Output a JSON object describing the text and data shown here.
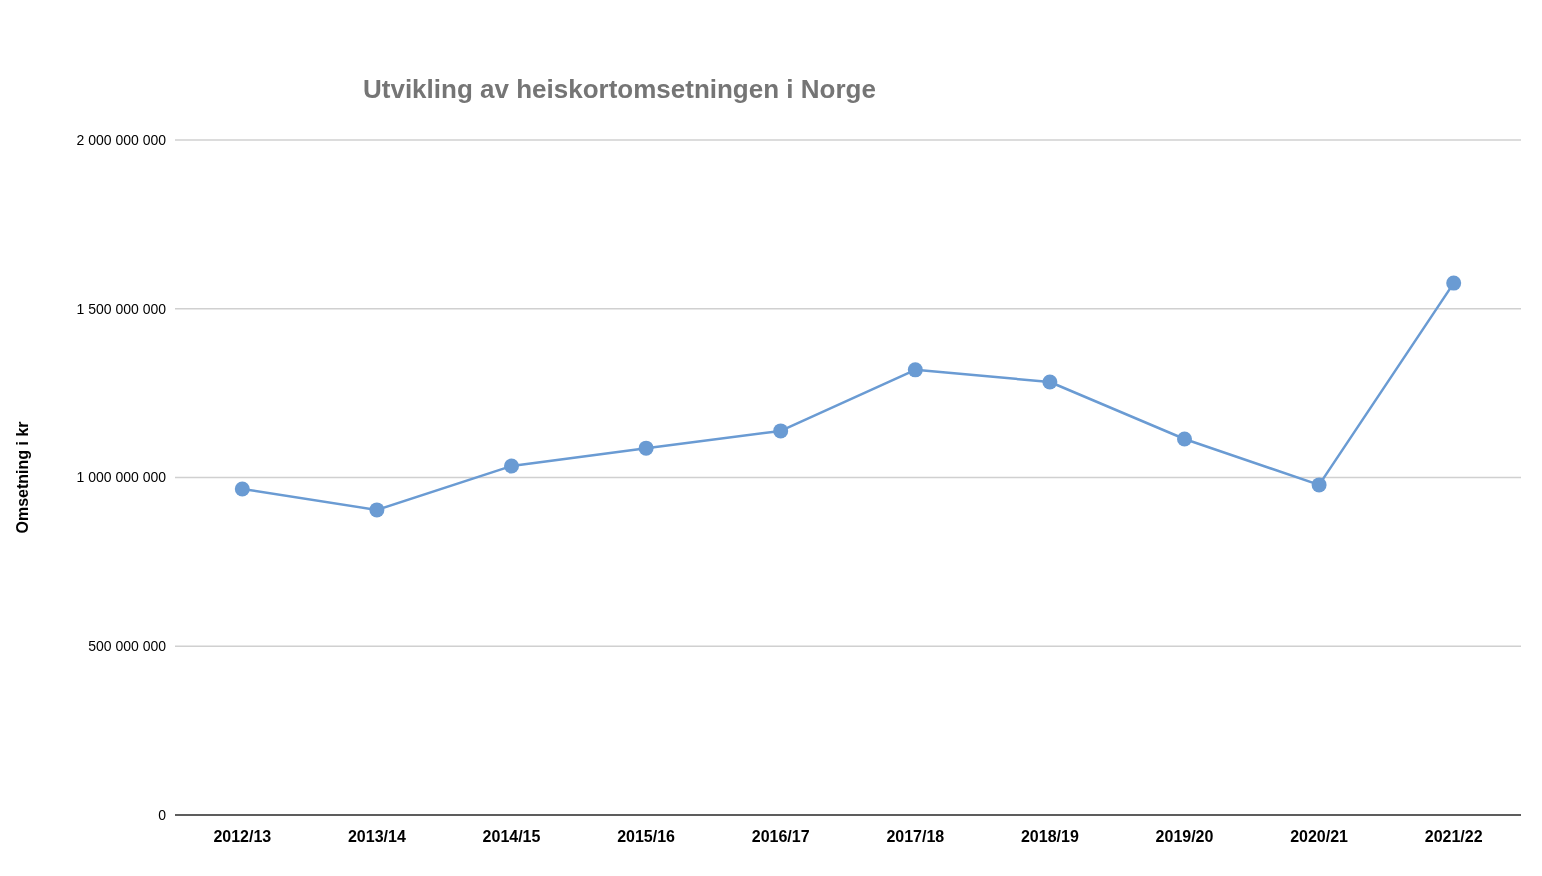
{
  "chart_data": {
    "type": "line",
    "title": "Utvikling av heiskortomsetningen i Norge",
    "ylabel": "Omsetning i kr",
    "categories": [
      "2012/13",
      "2013/14",
      "2014/15",
      "2015/16",
      "2016/17",
      "2017/18",
      "2018/19",
      "2019/20",
      "2020/21",
      "2021/22"
    ],
    "series": [
      {
        "color": "#6a9bd3",
        "values": [
          966000000,
          904000000,
          1034000000,
          1087000000,
          1138000000,
          1319000000,
          1283000000,
          1114000000,
          978000000,
          1576000000
        ]
      }
    ],
    "ylim": [
      0,
      2000000000
    ],
    "yticks": [
      0,
      {
        "value": 500000000,
        "label": "500 000 000"
      },
      {
        "value": 1000000000,
        "label": "1 000 000 000"
      },
      {
        "value": 1500000000,
        "label": "1 500 000 000"
      },
      {
        "value": 2000000000,
        "label": "2 000 000 000"
      }
    ],
    "grid": "y",
    "marker": "circle",
    "line_style": "solid"
  }
}
